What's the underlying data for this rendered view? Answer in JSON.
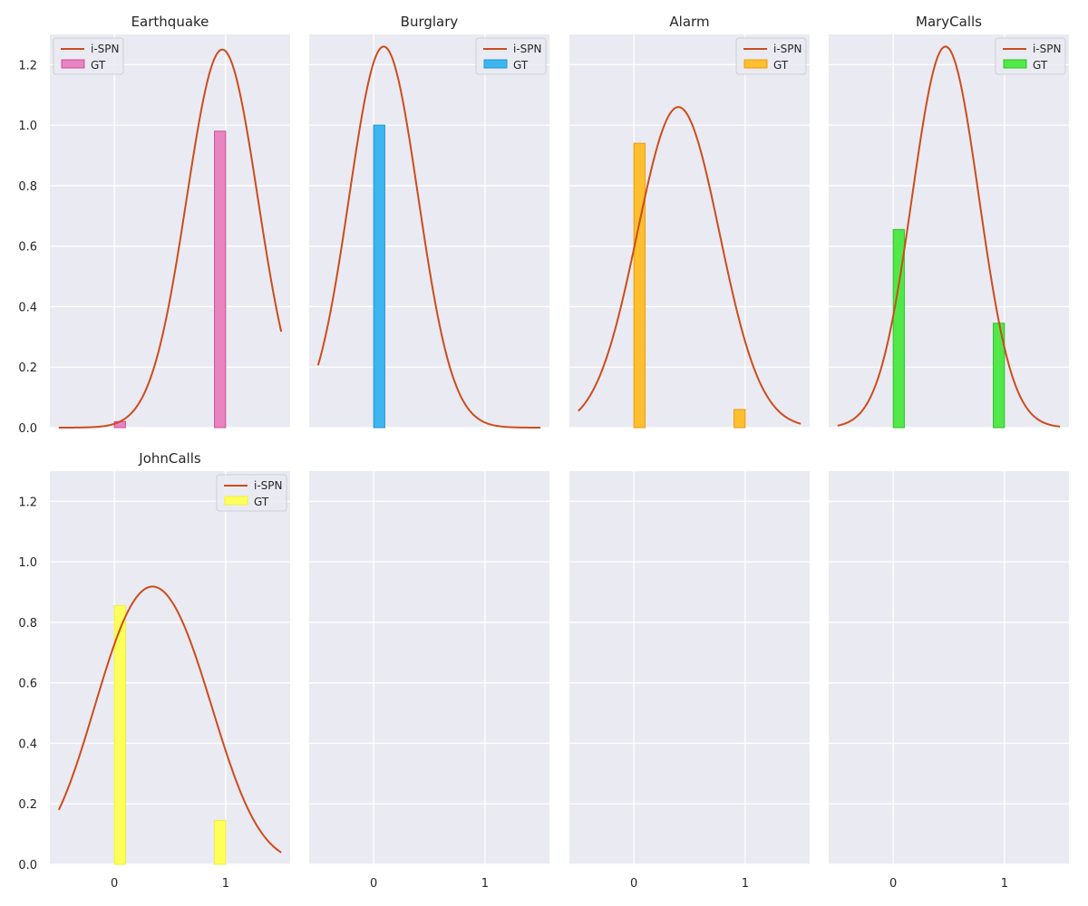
{
  "chart_data": {
    "type": "bar",
    "layout": {
      "rows": 2,
      "cols": 4
    },
    "shared_axes": {
      "xlim": [
        -0.58,
        1.58
      ],
      "ylim": [
        0,
        1.3
      ],
      "xticks": [
        0,
        1
      ],
      "xtick_labels": [
        "0",
        "1"
      ],
      "yticks": [
        0,
        0.2,
        0.4,
        0.6,
        0.8,
        1.0,
        1.2
      ],
      "ytick_labels": [
        "0.0",
        "0.2",
        "0.4",
        "0.6",
        "0.8",
        "1.0",
        "1.2"
      ],
      "grid": true
    },
    "line_color": "#cc4c1c",
    "legend": {
      "line_label": "i-SPN",
      "bar_label": "GT",
      "placement": "upper-right"
    },
    "bar_width": 0.1,
    "panels": [
      {
        "title": "Earthquake",
        "bar_color": "#e884bf",
        "bar_edge": "#d04e98",
        "categories": [
          "0",
          "1"
        ],
        "x": [
          0.05,
          0.95
        ],
        "values": [
          0.02,
          0.98
        ],
        "curve": {
          "x_range": [
            -0.5,
            1.5
          ],
          "peaks": [
            {
              "mu": 0.97,
              "sigma": 0.32,
              "height": 1.25
            }
          ]
        },
        "legend_placement": "upper-left"
      },
      {
        "title": "Burglary",
        "bar_color": "#3db6f0",
        "bar_edge": "#1f95d6",
        "categories": [
          "0",
          "1"
        ],
        "x": [
          0.05,
          0.95
        ],
        "values": [
          1.0,
          0.0
        ],
        "curve": {
          "x_range": [
            -0.5,
            1.5
          ],
          "peaks": [
            {
              "mu": 0.09,
              "sigma": 0.31,
              "height": 1.26
            }
          ]
        },
        "legend_placement": "upper-right"
      },
      {
        "title": "Alarm",
        "bar_color": "#ffbf2e",
        "bar_edge": "#e89a10",
        "categories": [
          "0",
          "1"
        ],
        "x": [
          0.05,
          0.95
        ],
        "values": [
          0.94,
          0.06
        ],
        "curve": {
          "x_range": [
            -0.5,
            1.5
          ],
          "peaks": [
            {
              "mu": 0.4,
              "sigma": 0.37,
              "height": 1.06
            }
          ]
        },
        "legend_placement": "upper-right"
      },
      {
        "title": "MaryCalls",
        "bar_color": "#52e84a",
        "bar_edge": "#2cbf2a",
        "categories": [
          "0",
          "1"
        ],
        "x": [
          0.05,
          0.95
        ],
        "values": [
          0.655,
          0.345
        ],
        "curve": {
          "x_range": [
            -0.5,
            1.5
          ],
          "peaks": [
            {
              "mu": 0.47,
              "sigma": 0.3,
              "height": 1.26
            }
          ]
        },
        "legend_placement": "upper-right"
      },
      {
        "title": "JohnCalls",
        "bar_color": "#ffff5c",
        "bar_edge": "#f0f03a",
        "categories": [
          "0",
          "1"
        ],
        "x": [
          0.05,
          0.95
        ],
        "values": [
          0.855,
          0.145
        ],
        "curve": {
          "x_range": [
            -0.5,
            1.5
          ],
          "peaks": [
            {
              "mu": 0.1,
              "sigma": 0.38,
              "height": 0.6
            },
            {
              "mu": 0.62,
              "sigma": 0.38,
              "height": 0.56
            }
          ]
        },
        "legend_placement": "upper-right"
      },
      {
        "title": "",
        "empty": true
      },
      {
        "title": "",
        "empty": true
      },
      {
        "title": "",
        "empty": true
      }
    ]
  }
}
